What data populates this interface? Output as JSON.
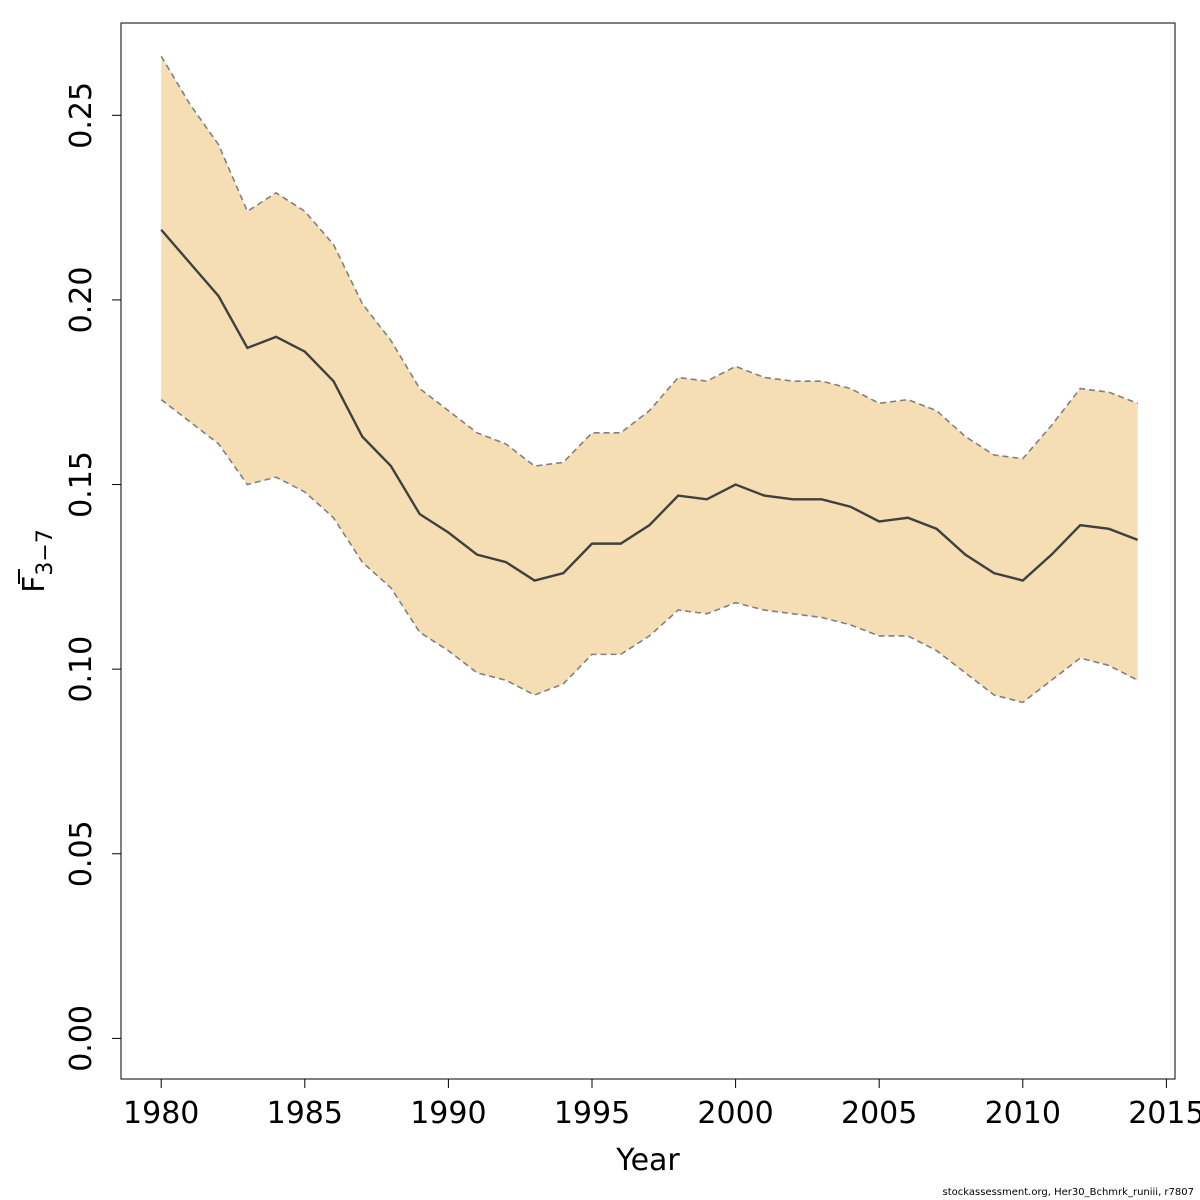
{
  "chart_data": {
    "type": "area",
    "title": "",
    "xlabel": "Year",
    "ylabel": {
      "base": "F",
      "subscript": "3−7",
      "overbar": true
    },
    "xlim": [
      1978.6,
      2015.3
    ],
    "ylim": [
      -0.011,
      0.275
    ],
    "x_ticks": [
      1980,
      1985,
      1990,
      1995,
      2000,
      2005,
      2010,
      2015
    ],
    "x_tick_labels": [
      "1980",
      "1985",
      "1990",
      "1995",
      "2000",
      "2005",
      "2010",
      "2015"
    ],
    "y_ticks": [
      0.0,
      0.05,
      0.1,
      0.15,
      0.2,
      0.25
    ],
    "y_tick_labels": [
      "0.00",
      "0.05",
      "0.10",
      "0.15",
      "0.20",
      "0.25"
    ],
    "grid": false,
    "colors": {
      "band": "#F5DEB3",
      "line": "#404040",
      "bound": "#808080"
    },
    "x": [
      1980,
      1981,
      1982,
      1983,
      1984,
      1985,
      1986,
      1987,
      1988,
      1989,
      1990,
      1991,
      1992,
      1993,
      1994,
      1995,
      1996,
      1997,
      1998,
      1999,
      2000,
      2001,
      2002,
      2003,
      2004,
      2005,
      2006,
      2007,
      2008,
      2009,
      2010,
      2011,
      2012,
      2013,
      2014
    ],
    "series": [
      {
        "role": "estimate",
        "values": [
          0.219,
          0.21,
          0.201,
          0.187,
          0.19,
          0.186,
          0.178,
          0.163,
          0.155,
          0.142,
          0.137,
          0.131,
          0.129,
          0.124,
          0.126,
          0.134,
          0.134,
          0.139,
          0.147,
          0.146,
          0.15,
          0.147,
          0.146,
          0.146,
          0.144,
          0.14,
          0.141,
          0.138,
          0.131,
          0.126,
          0.124,
          0.131,
          0.139,
          0.138,
          0.135
        ]
      },
      {
        "role": "upper",
        "values": [
          0.266,
          0.253,
          0.242,
          0.224,
          0.229,
          0.224,
          0.215,
          0.199,
          0.189,
          0.176,
          0.17,
          0.164,
          0.161,
          0.155,
          0.156,
          0.164,
          0.164,
          0.17,
          0.179,
          0.178,
          0.182,
          0.179,
          0.178,
          0.178,
          0.176,
          0.172,
          0.173,
          0.17,
          0.163,
          0.158,
          0.157,
          0.166,
          0.176,
          0.175,
          0.172
        ]
      },
      {
        "role": "lower",
        "values": [
          0.173,
          0.167,
          0.161,
          0.15,
          0.152,
          0.148,
          0.141,
          0.129,
          0.122,
          0.11,
          0.105,
          0.099,
          0.097,
          0.093,
          0.096,
          0.104,
          0.104,
          0.109,
          0.116,
          0.115,
          0.118,
          0.116,
          0.115,
          0.114,
          0.112,
          0.109,
          0.109,
          0.105,
          0.099,
          0.093,
          0.091,
          0.097,
          0.103,
          0.101,
          0.097
        ]
      }
    ]
  },
  "footer": "stockassessment.org, Her30_Bchmrk_runiii, r7807"
}
